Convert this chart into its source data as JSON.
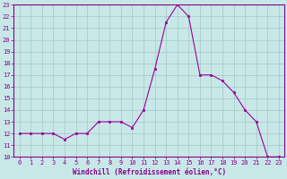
{
  "hours": [
    0,
    1,
    2,
    3,
    4,
    5,
    6,
    7,
    8,
    9,
    10,
    11,
    12,
    13,
    14,
    15,
    16,
    17,
    18,
    19,
    20,
    21,
    22,
    23
  ],
  "temps": [
    12,
    12,
    12,
    12,
    11.5,
    12,
    12,
    13,
    13,
    13,
    12.5,
    14,
    17.5,
    21.5,
    23,
    22,
    17,
    17,
    16.5,
    15.5,
    14,
    13,
    10,
    10
  ],
  "line_color": "#990099",
  "marker_color": "#990099",
  "bg_color": "#c8e8e8",
  "grid_color": "#aacccc",
  "xlabel": "Windchill (Refroidissement éolien,°C)",
  "ylim": [
    10,
    23
  ],
  "xlim": [
    -0.5,
    23.5
  ],
  "yticks": [
    10,
    11,
    12,
    13,
    14,
    15,
    16,
    17,
    18,
    19,
    20,
    21,
    22,
    23
  ],
  "xticks": [
    0,
    1,
    2,
    3,
    4,
    5,
    6,
    7,
    8,
    9,
    10,
    11,
    12,
    13,
    14,
    15,
    16,
    17,
    18,
    19,
    20,
    21,
    22,
    23
  ],
  "tick_color": "#880088",
  "label_color": "#880088",
  "spine_color": "#880088",
  "tick_fontsize": 5,
  "label_fontsize": 5.5
}
